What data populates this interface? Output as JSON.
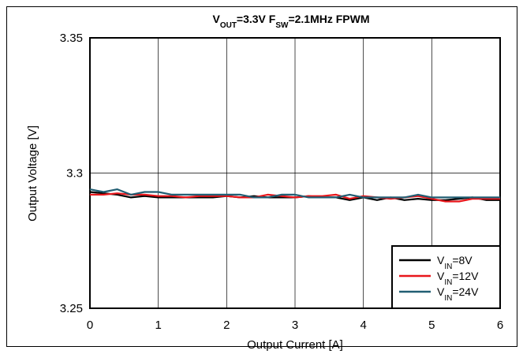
{
  "chart_data": {
    "type": "line",
    "title": {
      "parts": [
        {
          "text": "V",
          "sub": false
        },
        {
          "text": "OUT",
          "sub": true
        },
        {
          "text": "=3.3V F",
          "sub": false
        },
        {
          "text": "SW",
          "sub": true
        },
        {
          "text": "=2.1MHz FPWM",
          "sub": false
        }
      ]
    },
    "xlabel": "Output Current [A]",
    "ylabel": "Output Voltage [V]",
    "xlim": [
      0,
      6
    ],
    "ylim": [
      3.25,
      3.35
    ],
    "x_ticks": [
      "0",
      "1",
      "2",
      "3",
      "4",
      "5",
      "6"
    ],
    "y_ticks": [
      "3.25",
      "3.3",
      "3.35"
    ],
    "grid": true,
    "legend_position": "bottom-right",
    "series": [
      {
        "legend": {
          "base": "V",
          "sub": "IN",
          "suffix": "=8V"
        },
        "color": "#000000",
        "x": [
          0,
          0.2,
          0.4,
          0.6,
          0.8,
          1.0,
          1.2,
          1.4,
          1.6,
          1.8,
          2.0,
          2.2,
          2.4,
          2.6,
          2.8,
          3.0,
          3.2,
          3.4,
          3.6,
          3.8,
          4.0,
          4.2,
          4.4,
          4.6,
          4.8,
          5.0,
          5.2,
          5.4,
          5.6,
          5.8,
          6.0
        ],
        "y": [
          3.293,
          3.2925,
          3.292,
          3.291,
          3.2915,
          3.291,
          3.291,
          3.291,
          3.291,
          3.291,
          3.2915,
          3.291,
          3.2915,
          3.291,
          3.291,
          3.291,
          3.2915,
          3.291,
          3.291,
          3.29,
          3.291,
          3.29,
          3.291,
          3.29,
          3.2905,
          3.29,
          3.29,
          3.2905,
          3.291,
          3.29,
          3.29
        ]
      },
      {
        "legend": {
          "base": "V",
          "sub": "IN",
          "suffix": "=12V"
        },
        "color": "#e8161b",
        "x": [
          0,
          0.2,
          0.4,
          0.6,
          0.8,
          1.0,
          1.2,
          1.4,
          1.6,
          1.8,
          2.0,
          2.2,
          2.4,
          2.6,
          2.8,
          3.0,
          3.2,
          3.4,
          3.6,
          3.8,
          4.0,
          4.2,
          4.4,
          4.6,
          4.8,
          5.0,
          5.2,
          5.4,
          5.6,
          5.8,
          6.0
        ],
        "y": [
          3.292,
          3.292,
          3.2925,
          3.292,
          3.292,
          3.2915,
          3.2915,
          3.291,
          3.2915,
          3.2915,
          3.2915,
          3.291,
          3.291,
          3.292,
          3.2915,
          3.291,
          3.2915,
          3.2915,
          3.292,
          3.2905,
          3.2915,
          3.291,
          3.2905,
          3.291,
          3.2915,
          3.2905,
          3.2895,
          3.2895,
          3.2905,
          3.2905,
          3.2905
        ]
      },
      {
        "legend": {
          "base": "V",
          "sub": "IN",
          "suffix": "=24V"
        },
        "color": "#215e73",
        "x": [
          0,
          0.2,
          0.4,
          0.6,
          0.8,
          1.0,
          1.2,
          1.4,
          1.6,
          1.8,
          2.0,
          2.2,
          2.4,
          2.6,
          2.8,
          3.0,
          3.2,
          3.4,
          3.6,
          3.8,
          4.0,
          4.2,
          4.4,
          4.6,
          4.8,
          5.0,
          5.2,
          5.4,
          5.6,
          5.8,
          6.0
        ],
        "y": [
          3.294,
          3.293,
          3.294,
          3.292,
          3.293,
          3.293,
          3.292,
          3.292,
          3.292,
          3.292,
          3.292,
          3.292,
          3.291,
          3.291,
          3.292,
          3.292,
          3.291,
          3.291,
          3.291,
          3.292,
          3.291,
          3.291,
          3.291,
          3.291,
          3.292,
          3.291,
          3.291,
          3.291,
          3.291,
          3.291,
          3.291
        ]
      }
    ]
  }
}
